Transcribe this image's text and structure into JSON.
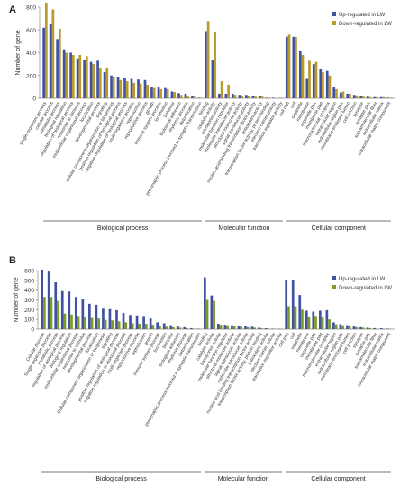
{
  "chart_data": [
    {
      "type": "bar",
      "panel_label": "A",
      "ylabel": "Number of gene",
      "ylim": [
        0,
        800
      ],
      "yticks": [
        0,
        200,
        400,
        600,
        800
      ],
      "legend_position": "top-right",
      "categories": [
        "single-organism process",
        "cellular process",
        "metabolic process",
        "biological regulation",
        "regulation of biological process",
        "response to stimulus",
        "multicellular organismal process",
        "localization",
        "developmental process",
        "signaling",
        "cellular component organization or biogenesis",
        "positive regulation of biological process",
        "negative regulation of biological process",
        "multi-organism process",
        "reproduction",
        "reproductive process",
        "growth",
        "immune system process",
        "locomotion",
        "behavior",
        "biological adhesion",
        "rhythmic process",
        "detoxification",
        "presynaptic process involved in synaptic transmission",
        "binding",
        "catalytic activity",
        "transporter activity",
        "molecular function regulator",
        "molecular transducer activity",
        "structural molecule activity",
        "signal transducer activity",
        "nucleic acid binding transcription factor activity",
        "antioxidant activity",
        "transcription factor activity, protein binding",
        "electron carrier activity",
        "translation regulator activity",
        "cell part",
        "cell",
        "organelle",
        "membrane",
        "organelle part",
        "membrane part",
        "macromolecular complex",
        "extracellular region",
        "extracellular region part",
        "membrane-enclosed lumen",
        "cell junction",
        "synapse",
        "synapse part",
        "supramolecular fiber",
        "extracellular matrix",
        "extracellular matrix component"
      ],
      "visible_labels": [
        "single-organism process",
        "cellular process",
        "metabolic process",
        "biological regulation",
        "regulation of biological process",
        "response to stimulus",
        "multicellular organismal process",
        "localization",
        "developmental process",
        "signaling",
        "cellular component organization or biogenesis",
        "positive regulation of biological process",
        "negative regulation of biological process",
        "multi-organism process",
        "reproduction",
        "reproductive process",
        "growth",
        "immune system process",
        "locomotion",
        "behavior",
        "biological adhesion",
        "rhythmic process",
        "detoxification",
        "presynaptic process involved in synaptic transmission",
        "binding",
        "catalytic activity",
        "transporter activity",
        "molecular function regulator",
        "molecular transducer activity",
        "structural molecule activity",
        "signal transducer activity",
        "nucleic acid binding transcription factor activity",
        "antioxidant activity",
        "transcription factor activity, protein binding",
        "electron carrier activity",
        "translation regulator activity",
        "cell part",
        "cell",
        "organelle",
        "membrane",
        "organelle part",
        "membrane part",
        "macromolecular complex",
        "extracellular region",
        "extracellular region part",
        "membrane-enclosed lumen",
        "cell junction",
        "synapse",
        "synapse part",
        "supramolecular fiber",
        "extracellular matrix",
        "extracellular matrix component"
      ],
      "groups": [
        {
          "label": "Biological process",
          "start": 0,
          "end": 23
        },
        {
          "label": "Molecular function",
          "start": 24,
          "end": 35
        },
        {
          "label": "Cellular component",
          "start": 36,
          "end": 51
        }
      ],
      "series": [
        {
          "name": "Up-regulated in LW",
          "color": "#4152a3",
          "values": [
            620,
            650,
            520,
            430,
            400,
            350,
            340,
            320,
            330,
            230,
            200,
            190,
            180,
            170,
            165,
            160,
            100,
            95,
            90,
            60,
            45,
            40,
            20,
            5,
            590,
            340,
            40,
            40,
            40,
            30,
            30,
            20,
            20,
            5,
            5,
            3,
            540,
            540,
            420,
            170,
            300,
            260,
            240,
            100,
            50,
            40,
            30,
            20,
            15,
            10,
            10,
            5
          ]
        },
        {
          "name": "Down-regulated in LW",
          "color": "#b89b2a",
          "values": [
            840,
            780,
            610,
            400,
            380,
            380,
            370,
            300,
            270,
            270,
            190,
            160,
            150,
            135,
            130,
            120,
            90,
            80,
            80,
            55,
            30,
            15,
            15,
            5,
            680,
            580,
            150,
            120,
            30,
            25,
            20,
            15,
            15,
            5,
            3,
            3,
            560,
            540,
            380,
            330,
            320,
            230,
            200,
            80,
            60,
            40,
            25,
            15,
            10,
            10,
            10,
            5
          ]
        }
      ]
    },
    {
      "type": "bar",
      "panel_label": "B",
      "ylabel": "Number of gene",
      "ylim": [
        0,
        600
      ],
      "yticks": [
        0,
        100,
        200,
        300,
        400,
        500,
        600
      ],
      "legend_position": "top-right",
      "categories": [
        "Cellular process",
        "Single-organism process",
        "metabolic process",
        "regulation of biological process",
        "biological regulation",
        "multicellular organismal process",
        "response to stimulus",
        "developmental process",
        "localization",
        "Cellular component organization or biogenesis",
        "signaling",
        "positive regulation of biological process",
        "negative regulation of biological process",
        "multi-organism process",
        "reproductive process",
        "reproduction",
        "growth",
        "immune system process",
        "locomotion",
        "behavior",
        "biological adhesion",
        "rhythmic process",
        "detoxification",
        "presynaptic process involved in synaptic transmission",
        "binding",
        "catalytic activity",
        "transporter activity",
        "molecular function regulator",
        "structural molecule activity",
        "signal transducer activity",
        "molecular transducer activity",
        "nucleic acid binding transcription factor activity",
        "transcription factor activity, protein binding",
        "antioxidant activity",
        "electron carrier activity",
        "translation regulator activity",
        "cell part",
        "cell",
        "organelle",
        "membrane",
        "organelle part",
        "membrane part",
        "macromolecular complex",
        "extracellular region",
        "extracellular region part",
        "membrane-enclosed lumen",
        "cell junction",
        "synapse",
        "synapse part",
        "supramolecular fiber",
        "extracellular matrix",
        "extracellular matrix component"
      ],
      "visible_labels": [
        "Cellular process",
        "Single-organism process",
        "metabolic process",
        "regulation of biological process",
        "biological regulation",
        "multicellular organismal process",
        "response to stimulus",
        "developmental process",
        "localization",
        "Cellular component organization or biogenesis",
        "signaling",
        "positive regulation of biological process",
        "negative regulation of biological process",
        "multi-organism process",
        "reproductive process",
        "reproduction",
        "growth",
        "immune system process",
        "locomotion",
        "behavior",
        "biological adhesion",
        "rhythmic process",
        "detoxification",
        "presynaptic process involved in synaptic transmission",
        "binding",
        "catalytic activity",
        "transporter activity",
        "molecular function regulator",
        "structural molecule activity",
        "signal transducer activity",
        "molecular transducer activity",
        "nucleic acid binding transcription factor activity",
        "transcription factor activity, protein binding",
        "antioxidant activity",
        "electron carrier activity",
        "translation regulator activity",
        "cell part",
        "cell",
        "organelle",
        "membrane",
        "organelle part",
        "membrane part",
        "macromolecular complex",
        "extracellular region",
        "extracellular region part",
        "membrane-enclosed lumen",
        "cell junction",
        "synapse",
        "synapse part",
        "supramolecular fiber",
        "extracellular matrix",
        "extracellular matrix component"
      ],
      "groups": [
        {
          "label": "Biological process",
          "start": 0,
          "end": 23
        },
        {
          "label": "Molecular function",
          "start": 24,
          "end": 35
        },
        {
          "label": "Cellular component",
          "start": 36,
          "end": 51
        }
      ],
      "series": [
        {
          "name": "Up-regulated in LW",
          "color": "#4152a3",
          "values": [
            610,
            590,
            480,
            390,
            385,
            330,
            310,
            260,
            250,
            210,
            205,
            195,
            165,
            145,
            140,
            135,
            110,
            70,
            60,
            40,
            30,
            20,
            10,
            5,
            530,
            345,
            55,
            45,
            40,
            35,
            30,
            25,
            15,
            10,
            5,
            3,
            500,
            500,
            350,
            190,
            180,
            190,
            195,
            70,
            50,
            40,
            30,
            20,
            15,
            10,
            10,
            5
          ]
        },
        {
          "name": "Down-regulated in LW",
          "color": "#7c9a26",
          "values": [
            330,
            330,
            290,
            160,
            150,
            135,
            125,
            115,
            110,
            95,
            90,
            80,
            70,
            60,
            55,
            55,
            45,
            30,
            25,
            20,
            15,
            10,
            5,
            3,
            300,
            290,
            45,
            40,
            30,
            25,
            20,
            15,
            10,
            5,
            3,
            2,
            235,
            235,
            200,
            130,
            135,
            120,
            100,
            50,
            40,
            30,
            20,
            15,
            10,
            5,
            5,
            3
          ]
        }
      ]
    }
  ]
}
